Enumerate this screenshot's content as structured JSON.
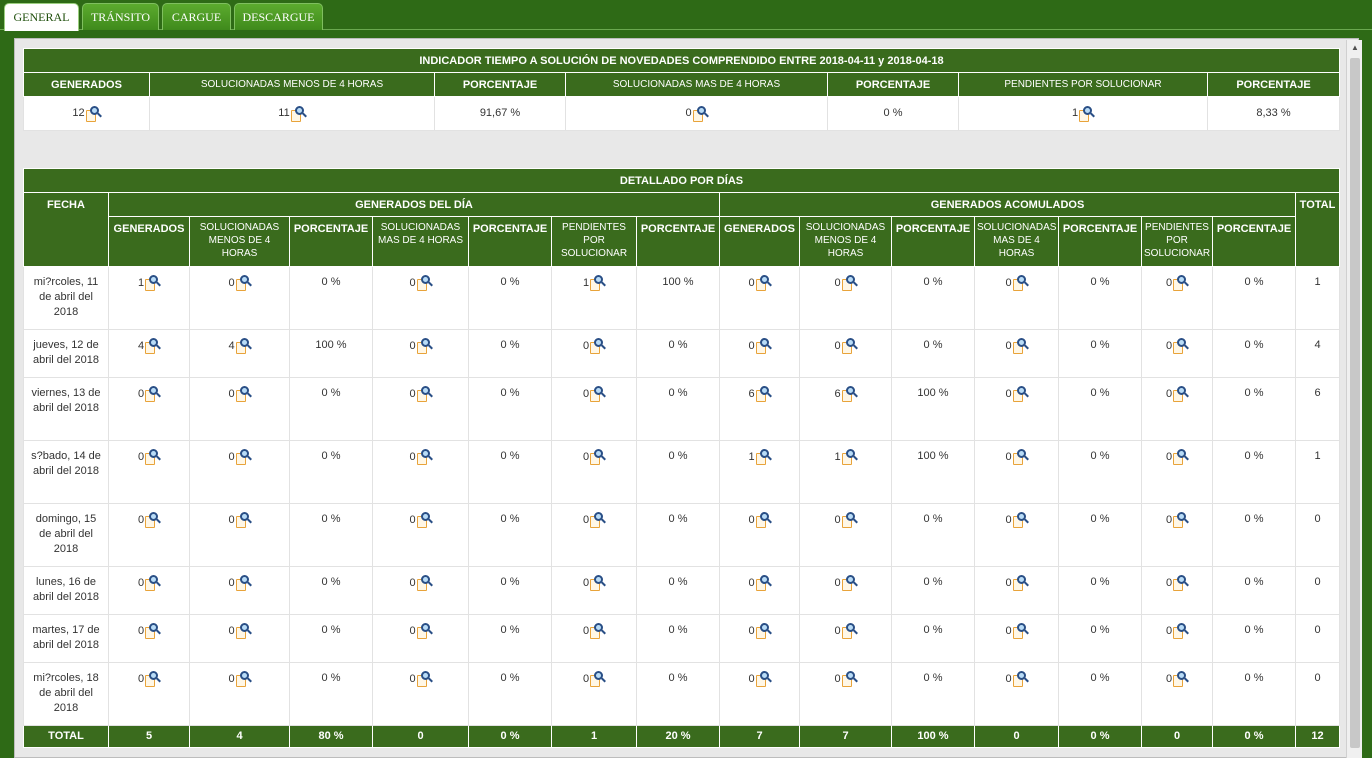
{
  "tabs": [
    "GENERAL",
    "TRÁNSITO",
    "CARGUE",
    "DESCARGUE"
  ],
  "summary": {
    "title": "INDICADOR TIEMPO A SOLUCIÓN DE NOVEDADES COMPRENDIDO ENTRE 2018-04-11 y 2018-04-18",
    "headers": [
      "GENERADOS",
      "SOLUCIONADAS MENOS DE 4 HORAS",
      "PORCENTAJE",
      "SOLUCIONADAS MAS DE 4 HORAS",
      "PORCENTAJE",
      "PENDIENTES POR SOLUCIONAR",
      "PORCENTAJE"
    ],
    "values": [
      "12",
      "11",
      "91,67 %",
      "0",
      "0 %",
      "1",
      "8,33 %"
    ]
  },
  "detail": {
    "title": "DETALLADO POR DÍAS",
    "fecha_header": "FECHA",
    "group_day": "GENERADOS DEL DÍA",
    "group_acc": "GENERADOS ACOMULADOS",
    "total_header": "TOTAL",
    "sub_headers": [
      "GENERADOS",
      "SOLUCIONADAS MENOS DE 4 HORAS",
      "PORCENTAJE",
      "SOLUCIONADAS MAS DE 4 HORAS",
      "PORCENTAJE",
      "PENDIENTES POR SOLUCIONAR",
      "PORCENTAJE"
    ],
    "rows": [
      {
        "fecha": "mi?rcoles, 11 de abril del 2018",
        "day": [
          "1",
          "0",
          "0 %",
          "0",
          "0 %",
          "1",
          "100 %"
        ],
        "acc": [
          "0",
          "0",
          "0 %",
          "0",
          "0 %",
          "0",
          "0 %"
        ],
        "total": "1"
      },
      {
        "fecha": "jueves, 12 de abril del 2018",
        "day": [
          "4",
          "4",
          "100 %",
          "0",
          "0 %",
          "0",
          "0 %"
        ],
        "acc": [
          "0",
          "0",
          "0 %",
          "0",
          "0 %",
          "0",
          "0 %"
        ],
        "total": "4"
      },
      {
        "fecha": "viernes, 13 de abril del 2018",
        "day": [
          "0",
          "0",
          "0 %",
          "0",
          "0 %",
          "0",
          "0 %"
        ],
        "acc": [
          "6",
          "6",
          "100 %",
          "0",
          "0 %",
          "0",
          "0 %"
        ],
        "total": "6"
      },
      {
        "fecha": "s?bado, 14 de abril del 2018",
        "day": [
          "0",
          "0",
          "0 %",
          "0",
          "0 %",
          "0",
          "0 %"
        ],
        "acc": [
          "1",
          "1",
          "100 %",
          "0",
          "0 %",
          "0",
          "0 %"
        ],
        "total": "1"
      },
      {
        "fecha": "domingo, 15 de abril del 2018",
        "day": [
          "0",
          "0",
          "0 %",
          "0",
          "0 %",
          "0",
          "0 %"
        ],
        "acc": [
          "0",
          "0",
          "0 %",
          "0",
          "0 %",
          "0",
          "0 %"
        ],
        "total": "0"
      },
      {
        "fecha": "lunes, 16 de abril del 2018",
        "day": [
          "0",
          "0",
          "0 %",
          "0",
          "0 %",
          "0",
          "0 %"
        ],
        "acc": [
          "0",
          "0",
          "0 %",
          "0",
          "0 %",
          "0",
          "0 %"
        ],
        "total": "0"
      },
      {
        "fecha": "martes, 17 de abril del 2018",
        "day": [
          "0",
          "0",
          "0 %",
          "0",
          "0 %",
          "0",
          "0 %"
        ],
        "acc": [
          "0",
          "0",
          "0 %",
          "0",
          "0 %",
          "0",
          "0 %"
        ],
        "total": "0"
      },
      {
        "fecha": "mi?rcoles, 18 de abril del 2018",
        "day": [
          "0",
          "0",
          "0 %",
          "0",
          "0 %",
          "0",
          "0 %"
        ],
        "acc": [
          "0",
          "0",
          "0 %",
          "0",
          "0 %",
          "0",
          "0 %"
        ],
        "total": "0"
      }
    ],
    "totals": {
      "label": "TOTAL",
      "values": [
        "5",
        "4",
        "80 %",
        "0",
        "0 %",
        "1",
        "20 %",
        "7",
        "7",
        "100 %",
        "0",
        "0 %",
        "0",
        "0 %",
        "12"
      ]
    }
  }
}
